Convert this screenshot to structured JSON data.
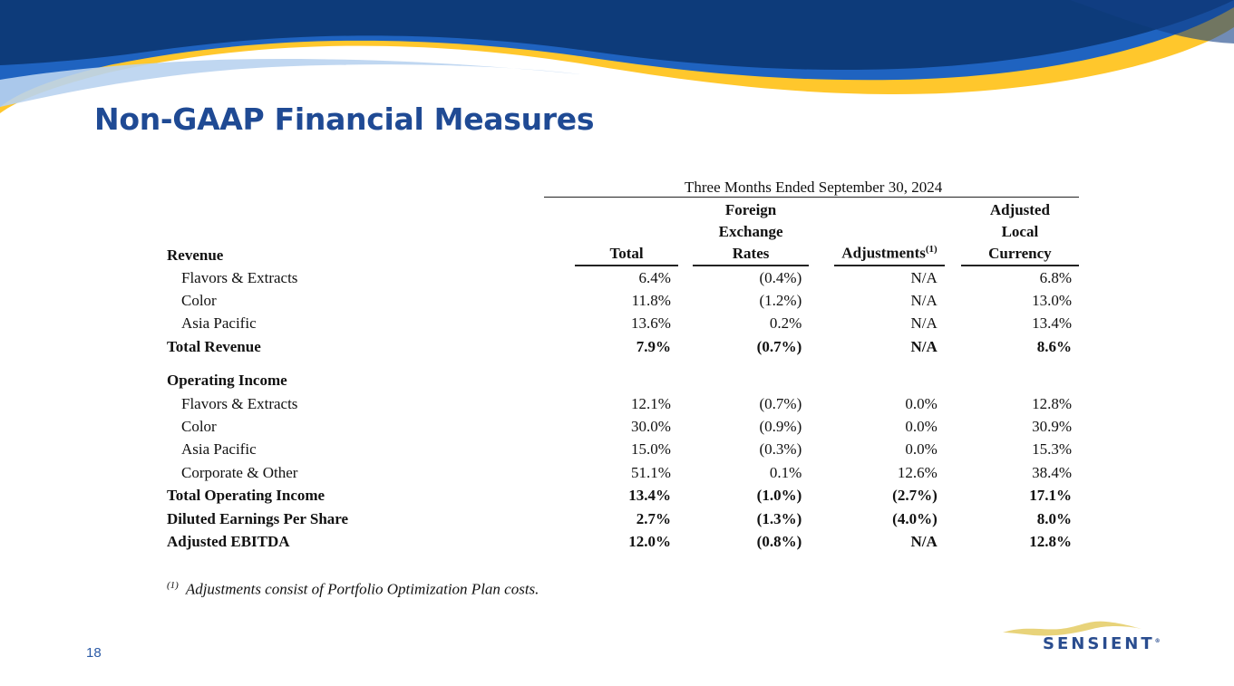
{
  "slide": {
    "title": "Non-GAAP Financial Measures",
    "page_number": "18",
    "brand_colors": {
      "navy": "#0d3b7a",
      "blue": "#1f63c0",
      "yellow": "#ffc72c",
      "title": "#1f4a94"
    }
  },
  "table": {
    "period": "Three Months Ended September 30, 2024",
    "section_header": "Revenue",
    "columns": {
      "total": "Total",
      "fx": [
        "Foreign",
        "Exchange",
        "Rates"
      ],
      "adjustments": "Adjustments",
      "adjustments_sup": "(1)",
      "alc": [
        "Adjusted",
        "Local",
        "Currency"
      ]
    },
    "revenue_rows": [
      {
        "label": "Flavors & Extracts",
        "total": "6.4%",
        "fx": "(0.4%)",
        "adj": "N/A",
        "alc": "6.8%"
      },
      {
        "label": "Color",
        "total": "11.8%",
        "fx": "(1.2%)",
        "adj": "N/A",
        "alc": "13.0%"
      },
      {
        "label": "Asia Pacific",
        "total": "13.6%",
        "fx": "0.2%",
        "adj": "N/A",
        "alc": "13.4%"
      }
    ],
    "total_revenue": {
      "label": "Total Revenue",
      "total": "7.9%",
      "fx": "(0.7%)",
      "adj": "N/A",
      "alc": "8.6%"
    },
    "operating_income_header": "Operating Income",
    "operating_rows": [
      {
        "label": "Flavors & Extracts",
        "total": "12.1%",
        "fx": "(0.7%)",
        "adj": "0.0%",
        "alc": "12.8%"
      },
      {
        "label": "Color",
        "total": "30.0%",
        "fx": "(0.9%)",
        "adj": "0.0%",
        "alc": "30.9%"
      },
      {
        "label": "Asia Pacific",
        "total": "15.0%",
        "fx": "(0.3%)",
        "adj": "0.0%",
        "alc": "15.3%"
      },
      {
        "label": "Corporate & Other",
        "total": "51.1%",
        "fx": "0.1%",
        "adj": "12.6%",
        "alc": "38.4%"
      }
    ],
    "summary_rows": [
      {
        "label": "Total Operating Income",
        "total": "13.4%",
        "fx": "(1.0%)",
        "adj": "(2.7%)",
        "alc": "17.1%"
      },
      {
        "label": "Diluted Earnings Per Share",
        "total": "2.7%",
        "fx": "(1.3%)",
        "adj": "(4.0%)",
        "alc": "8.0%"
      },
      {
        "label": "Adjusted EBITDA",
        "total": "12.0%",
        "fx": "(0.8%)",
        "adj": "N/A",
        "alc": "12.8%"
      }
    ]
  },
  "footnote": {
    "marker": "(1)",
    "text": "Adjustments consist of Portfolio Optimization Plan costs."
  },
  "logo": {
    "text": "SENSIENT",
    "mark": "®"
  }
}
